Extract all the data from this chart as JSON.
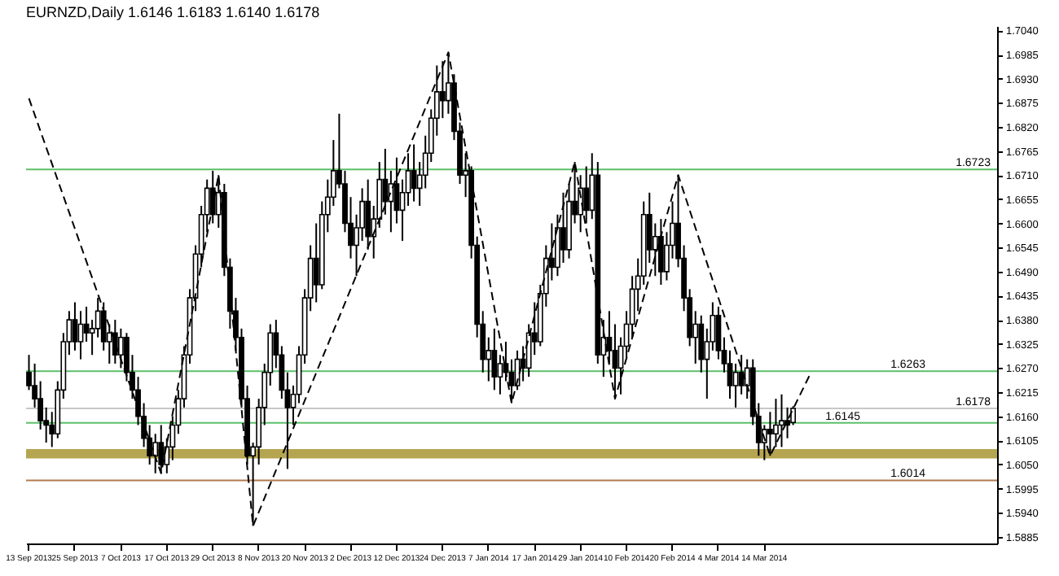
{
  "chart_data": {
    "type": "candlestick",
    "title": "EURNZD,Daily  1.6146 1.6183 1.6140 1.6178",
    "categories": [
      "13 Sep 2013",
      null,
      null,
      null,
      null,
      null,
      null,
      null,
      "25 Sep 2013",
      null,
      null,
      null,
      null,
      null,
      null,
      null,
      "7 Oct 2013",
      null,
      null,
      null,
      null,
      null,
      null,
      null,
      "17 Oct 2013",
      null,
      null,
      null,
      null,
      null,
      null,
      null,
      "29 Oct 2013",
      null,
      null,
      null,
      null,
      null,
      null,
      null,
      "8 Nov 2013",
      null,
      null,
      null,
      null,
      null,
      null,
      null,
      "20 Nov 2013",
      null,
      null,
      null,
      null,
      null,
      null,
      null,
      "2 Dec 2013",
      null,
      null,
      null,
      null,
      null,
      null,
      null,
      "12 Dec 2013",
      null,
      null,
      null,
      null,
      null,
      null,
      null,
      "24 Dec 2013",
      null,
      null,
      null,
      null,
      null,
      null,
      null,
      "7 Jan 2014",
      null,
      null,
      null,
      null,
      null,
      null,
      null,
      "17 Jan 2014",
      null,
      null,
      null,
      null,
      null,
      null,
      null,
      "29 Jan 2014",
      null,
      null,
      null,
      null,
      null,
      null,
      null,
      "10 Feb 2014",
      null,
      null,
      null,
      null,
      null,
      null,
      null,
      "20 Feb 2014",
      null,
      null,
      null,
      null,
      null,
      null,
      null,
      "4 Mar 2014",
      null,
      null,
      null,
      null,
      null,
      null,
      null,
      "14 Mar 2014",
      null,
      null,
      null,
      null,
      null,
      null,
      null,
      null,
      null,
      null,
      null,
      null,
      null,
      null,
      null,
      null,
      null,
      null,
      null,
      null,
      null,
      null,
      null,
      null,
      null,
      null,
      null,
      null,
      null,
      null,
      null,
      null,
      null,
      null,
      null,
      null,
      null,
      null,
      null,
      null
    ],
    "ohlc": [
      [
        1.626,
        1.63,
        1.622,
        1.623
      ],
      [
        1.623,
        1.628,
        1.618,
        1.62
      ],
      [
        1.62,
        1.624,
        1.613,
        1.615
      ],
      [
        1.615,
        1.618,
        1.61,
        1.614
      ],
      [
        1.614,
        1.617,
        1.609,
        1.612
      ],
      [
        1.612,
        1.624,
        1.611,
        1.622
      ],
      [
        1.622,
        1.635,
        1.62,
        1.633
      ],
      [
        1.633,
        1.64,
        1.63,
        1.638
      ],
      [
        1.638,
        1.642,
        1.631,
        1.633
      ],
      [
        1.633,
        1.64,
        1.629,
        1.637
      ],
      [
        1.637,
        1.641,
        1.633,
        1.635
      ],
      [
        1.635,
        1.638,
        1.63,
        1.636
      ],
      [
        1.636,
        1.643,
        1.634,
        1.64
      ],
      [
        1.64,
        1.642,
        1.631,
        1.633
      ],
      [
        1.633,
        1.637,
        1.628,
        1.635
      ],
      [
        1.635,
        1.638,
        1.628,
        1.63
      ],
      [
        1.63,
        1.636,
        1.627,
        1.634
      ],
      [
        1.634,
        1.635,
        1.624,
        1.626
      ],
      [
        1.626,
        1.63,
        1.62,
        1.622
      ],
      [
        1.622,
        1.625,
        1.614,
        1.616
      ],
      [
        1.616,
        1.619,
        1.609,
        1.611
      ],
      [
        1.611,
        1.614,
        1.605,
        1.607
      ],
      [
        1.607,
        1.612,
        1.603,
        1.61
      ],
      [
        1.61,
        1.614,
        1.603,
        1.605
      ],
      [
        1.605,
        1.611,
        1.603,
        1.609
      ],
      [
        1.609,
        1.616,
        1.606,
        1.614
      ],
      [
        1.614,
        1.622,
        1.612,
        1.62
      ],
      [
        1.62,
        1.632,
        1.618,
        1.63
      ],
      [
        1.63,
        1.645,
        1.628,
        1.643
      ],
      [
        1.643,
        1.655,
        1.64,
        1.653
      ],
      [
        1.653,
        1.664,
        1.65,
        1.662
      ],
      [
        1.662,
        1.67,
        1.658,
        1.668
      ],
      [
        1.668,
        1.672,
        1.66,
        1.662
      ],
      [
        1.662,
        1.671,
        1.659,
        1.667
      ],
      [
        1.667,
        1.669,
        1.648,
        1.65
      ],
      [
        1.65,
        1.652,
        1.636,
        1.64
      ],
      [
        1.64,
        1.643,
        1.631,
        1.634
      ],
      [
        1.634,
        1.636,
        1.618,
        1.62
      ],
      [
        1.62,
        1.623,
        1.605,
        1.607
      ],
      [
        1.607,
        1.61,
        1.591,
        1.609
      ],
      [
        1.609,
        1.62,
        1.605,
        1.618
      ],
      [
        1.618,
        1.628,
        1.614,
        1.626
      ],
      [
        1.626,
        1.637,
        1.623,
        1.635
      ],
      [
        1.635,
        1.638,
        1.627,
        1.63
      ],
      [
        1.63,
        1.632,
        1.62,
        1.622
      ],
      [
        1.622,
        1.626,
        1.604,
        1.618
      ],
      [
        1.618,
        1.623,
        1.614,
        1.621
      ],
      [
        1.621,
        1.632,
        1.619,
        1.63
      ],
      [
        1.63,
        1.645,
        1.628,
        1.643
      ],
      [
        1.643,
        1.655,
        1.64,
        1.652
      ],
      [
        1.652,
        1.66,
        1.642,
        1.646
      ],
      [
        1.646,
        1.665,
        1.645,
        1.662
      ],
      [
        1.662,
        1.67,
        1.658,
        1.666
      ],
      [
        1.666,
        1.679,
        1.664,
        1.672
      ],
      [
        1.672,
        1.685,
        1.668,
        1.669
      ],
      [
        1.669,
        1.672,
        1.658,
        1.66
      ],
      [
        1.66,
        1.666,
        1.652,
        1.655
      ],
      [
        1.655,
        1.662,
        1.648,
        1.659
      ],
      [
        1.659,
        1.668,
        1.656,
        1.665
      ],
      [
        1.665,
        1.67,
        1.654,
        1.657
      ],
      [
        1.657,
        1.664,
        1.652,
        1.661
      ],
      [
        1.661,
        1.674,
        1.659,
        1.67
      ],
      [
        1.67,
        1.677,
        1.662,
        1.665
      ],
      [
        1.665,
        1.672,
        1.658,
        1.669
      ],
      [
        1.669,
        1.675,
        1.66,
        1.663
      ],
      [
        1.663,
        1.67,
        1.656,
        1.667
      ],
      [
        1.667,
        1.676,
        1.664,
        1.672
      ],
      [
        1.672,
        1.678,
        1.665,
        1.668
      ],
      [
        1.668,
        1.674,
        1.664,
        1.671
      ],
      [
        1.671,
        1.68,
        1.668,
        1.676
      ],
      [
        1.676,
        1.686,
        1.674,
        1.684
      ],
      [
        1.684,
        1.696,
        1.68,
        1.69
      ],
      [
        1.69,
        1.697,
        1.684,
        1.688
      ],
      [
        1.688,
        1.699,
        1.685,
        1.692
      ],
      [
        1.692,
        1.694,
        1.679,
        1.681
      ],
      [
        1.681,
        1.683,
        1.669,
        1.671
      ],
      [
        1.671,
        1.676,
        1.666,
        1.672
      ],
      [
        1.672,
        1.673,
        1.652,
        1.655
      ],
      [
        1.655,
        1.657,
        1.634,
        1.637
      ],
      [
        1.637,
        1.64,
        1.626,
        1.629
      ],
      [
        1.629,
        1.634,
        1.624,
        1.631
      ],
      [
        1.631,
        1.636,
        1.622,
        1.625
      ],
      [
        1.625,
        1.63,
        1.621,
        1.628
      ],
      [
        1.628,
        1.633,
        1.624,
        1.626
      ],
      [
        1.626,
        1.629,
        1.619,
        1.623
      ],
      [
        1.623,
        1.631,
        1.622,
        1.629
      ],
      [
        1.629,
        1.632,
        1.624,
        1.627
      ],
      [
        1.627,
        1.637,
        1.625,
        1.635
      ],
      [
        1.635,
        1.642,
        1.63,
        1.633
      ],
      [
        1.633,
        1.646,
        1.632,
        1.644
      ],
      [
        1.644,
        1.655,
        1.641,
        1.652
      ],
      [
        1.652,
        1.66,
        1.647,
        1.65
      ],
      [
        1.65,
        1.662,
        1.648,
        1.659
      ],
      [
        1.659,
        1.667,
        1.651,
        1.654
      ],
      [
        1.654,
        1.669,
        1.652,
        1.665
      ],
      [
        1.665,
        1.674,
        1.66,
        1.662
      ],
      [
        1.662,
        1.671,
        1.658,
        1.668
      ],
      [
        1.668,
        1.673,
        1.66,
        1.663
      ],
      [
        1.663,
        1.676,
        1.661,
        1.671
      ],
      [
        1.671,
        1.674,
        1.628,
        1.63
      ],
      [
        1.63,
        1.638,
        1.625,
        1.634
      ],
      [
        1.634,
        1.64,
        1.628,
        1.631
      ],
      [
        1.631,
        1.637,
        1.62,
        1.627
      ],
      [
        1.627,
        1.634,
        1.621,
        1.632
      ],
      [
        1.632,
        1.64,
        1.629,
        1.637
      ],
      [
        1.637,
        1.648,
        1.634,
        1.645
      ],
      [
        1.645,
        1.652,
        1.64,
        1.648
      ],
      [
        1.648,
        1.665,
        1.646,
        1.662
      ],
      [
        1.662,
        1.667,
        1.651,
        1.654
      ],
      [
        1.654,
        1.66,
        1.648,
        1.657
      ],
      [
        1.657,
        1.661,
        1.646,
        1.649
      ],
      [
        1.649,
        1.658,
        1.647,
        1.655
      ],
      [
        1.655,
        1.665,
        1.652,
        1.66
      ],
      [
        1.66,
        1.671,
        1.65,
        1.652
      ],
      [
        1.652,
        1.655,
        1.64,
        1.643
      ],
      [
        1.643,
        1.645,
        1.632,
        1.634
      ],
      [
        1.634,
        1.64,
        1.628,
        1.637
      ],
      [
        1.637,
        1.639,
        1.626,
        1.629
      ],
      [
        1.629,
        1.636,
        1.62,
        1.633
      ],
      [
        1.633,
        1.642,
        1.631,
        1.639
      ],
      [
        1.639,
        1.641,
        1.629,
        1.631
      ],
      [
        1.631,
        1.634,
        1.626,
        1.628
      ],
      [
        1.628,
        1.631,
        1.62,
        1.623
      ],
      [
        1.623,
        1.628,
        1.618,
        1.626
      ],
      [
        1.626,
        1.63,
        1.621,
        1.623
      ],
      [
        1.623,
        1.629,
        1.62,
        1.627
      ],
      [
        1.627,
        1.629,
        1.614,
        1.616
      ],
      [
        1.616,
        1.619,
        1.607,
        1.61
      ],
      [
        1.61,
        1.614,
        1.606,
        1.613
      ],
      [
        1.613,
        1.617,
        1.607,
        1.612
      ],
      [
        1.612,
        1.62,
        1.609,
        1.614
      ],
      [
        1.614,
        1.621,
        1.609,
        1.615
      ],
      [
        1.615,
        1.618,
        1.611,
        1.614
      ],
      [
        1.6146,
        1.6183,
        1.614,
        1.6178
      ],
      null,
      null,
      null,
      null,
      null,
      null,
      null,
      null,
      null,
      null,
      null,
      null,
      null,
      null,
      null,
      null,
      null,
      null,
      null,
      null,
      null,
      null,
      null,
      null,
      null,
      null,
      null,
      null,
      null,
      null,
      null,
      null,
      null,
      null,
      null
    ],
    "series": [
      {
        "type": "line",
        "color": "#000000",
        "line_style": "dashed",
        "values": [
          1.6885,
          null,
          null,
          null,
          null,
          null,
          null,
          null,
          null,
          null,
          null,
          null,
          null,
          null,
          null,
          null,
          null,
          null,
          null,
          null,
          null,
          null,
          null,
          1.603,
          null,
          null,
          null,
          null,
          null,
          null,
          null,
          null,
          null,
          1.671,
          null,
          null,
          null,
          null,
          null,
          1.591,
          null,
          null,
          null,
          null,
          null,
          null,
          null,
          null,
          null,
          null,
          null,
          null,
          null,
          null,
          null,
          null,
          null,
          null,
          null,
          null,
          null,
          null,
          null,
          null,
          null,
          null,
          null,
          null,
          null,
          null,
          null,
          null,
          null,
          1.699,
          null,
          null,
          null,
          null,
          null,
          null,
          null,
          null,
          null,
          null,
          1.619,
          null,
          null,
          null,
          null,
          null,
          null,
          null,
          null,
          null,
          null,
          1.674,
          null,
          null,
          null,
          null,
          null,
          null,
          1.62,
          null,
          null,
          null,
          null,
          null,
          null,
          null,
          null,
          null,
          null,
          1.671,
          null,
          null,
          null,
          null,
          null,
          null,
          null,
          null,
          null,
          null,
          null,
          null,
          null,
          null,
          null,
          1.607,
          null,
          null,
          null,
          null,
          null,
          null,
          1.6257,
          null,
          null,
          null,
          null,
          null,
          null,
          null,
          null,
          null,
          null,
          null,
          null,
          null,
          null,
          null,
          null,
          null,
          null,
          null,
          null,
          null,
          null,
          null,
          null,
          null,
          null,
          null,
          null,
          null,
          null,
          null,
          null
        ]
      }
    ],
    "ylim": [
      1.587,
      1.705
    ],
    "yticks": [
      {
        "value": 1.704,
        "label": "1.7040"
      },
      {
        "value": 1.6985,
        "label": "1.6985"
      },
      {
        "value": 1.693,
        "label": "1.6930"
      },
      {
        "value": 1.6875,
        "label": "1.6875"
      },
      {
        "value": 1.682,
        "label": "1.6820"
      },
      {
        "value": 1.6765,
        "label": "1.6765"
      },
      {
        "value": 1.671,
        "label": "1.6710"
      },
      {
        "value": 1.6655,
        "label": "1.6655"
      },
      {
        "value": 1.66,
        "label": "1.6600"
      },
      {
        "value": 1.6545,
        "label": "1.6545"
      },
      {
        "value": 1.649,
        "label": "1.6490"
      },
      {
        "value": 1.6435,
        "label": "1.6435"
      },
      {
        "value": 1.638,
        "label": "1.6380"
      },
      {
        "value": 1.6325,
        "label": "1.6325"
      },
      {
        "value": 1.627,
        "label": "1.6270"
      },
      {
        "value": 1.6215,
        "label": "1.6215"
      },
      {
        "value": 1.616,
        "label": "1.6160"
      },
      {
        "value": 1.6105,
        "label": "1.6105"
      },
      {
        "value": 1.605,
        "label": "1.6050"
      },
      {
        "value": 1.5995,
        "label": "1.5995"
      },
      {
        "value": 1.594,
        "label": "1.5940"
      },
      {
        "value": 1.5885,
        "label": "1.5885"
      }
    ],
    "bands": [
      {
        "axis": "y",
        "from": 1.6064,
        "to": 1.6085,
        "color": "#b5a550"
      }
    ],
    "ref_lines": [
      {
        "axis": "y",
        "value": 1.6723,
        "label": "1.6723",
        "color": "#5cbf6a"
      },
      {
        "axis": "y",
        "value": 1.6263,
        "label": "1.6263",
        "color": "#5cbf6a"
      },
      {
        "axis": "y",
        "value": 1.6145,
        "label": "1.6145",
        "color": "#5cbf6a"
      },
      {
        "axis": "y",
        "value": 1.6178,
        "label": "1.6178",
        "color": "#c8c8c8"
      },
      {
        "axis": "y",
        "value": 1.6014,
        "label": "1.6014",
        "color": "#b07a50"
      }
    ]
  }
}
